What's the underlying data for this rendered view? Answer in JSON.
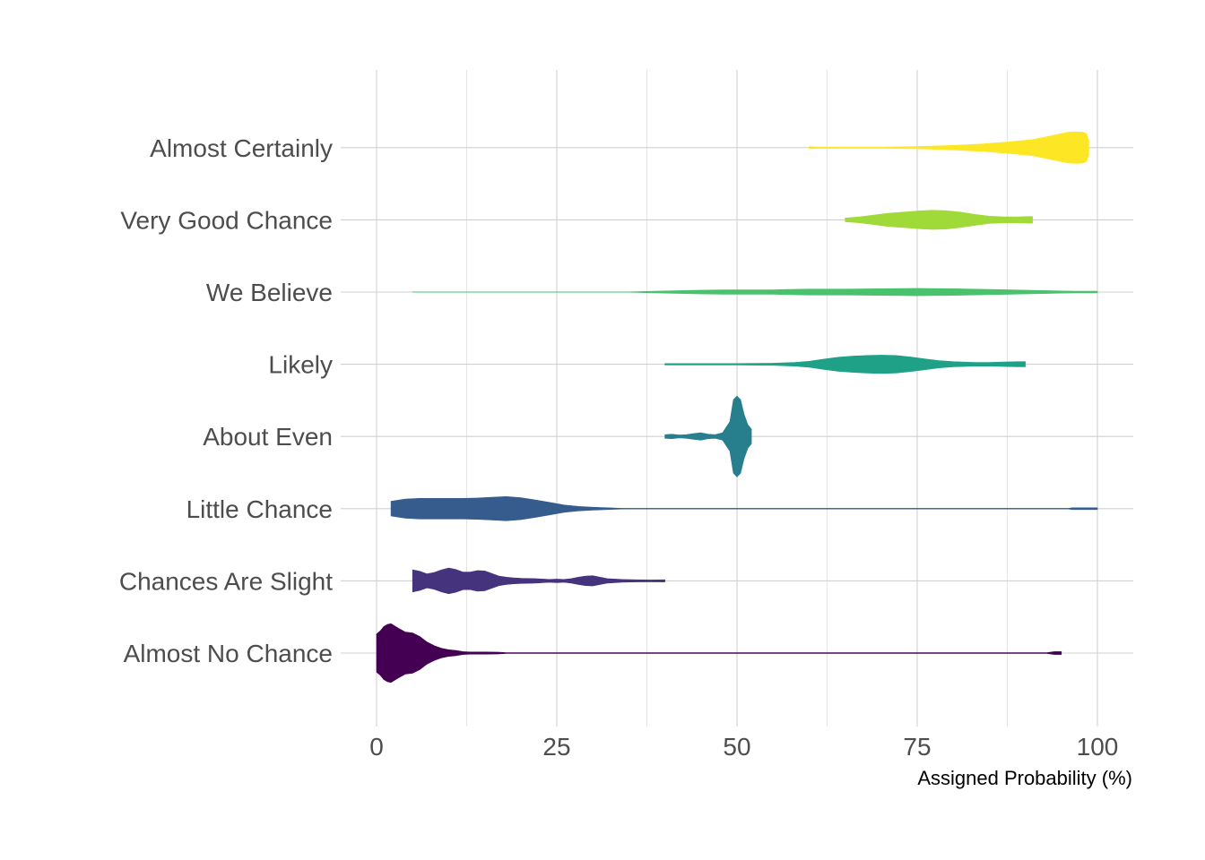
{
  "chart_data": {
    "type": "violin",
    "orientation": "horizontal",
    "title": "",
    "xlabel": "Assigned Probability (%)",
    "ylabel": "",
    "xlim": [
      0,
      100
    ],
    "x_ticks": [
      0,
      25,
      50,
      75,
      100
    ],
    "grid": true,
    "legend": "none",
    "categories": [
      "Almost No Chance",
      "Chances Are Slight",
      "Little Chance",
      "About Even",
      "Likely",
      "We Believe",
      "Very Good Chance",
      "Almost Certainly"
    ],
    "series": [
      {
        "name": "Almost No Chance",
        "color": "#440154",
        "density": [
          [
            0,
            0.52
          ],
          [
            0.5,
            0.6
          ],
          [
            1,
            0.72
          ],
          [
            1.5,
            0.78
          ],
          [
            2,
            0.8
          ],
          [
            3,
            0.68
          ],
          [
            4,
            0.57
          ],
          [
            5,
            0.55
          ],
          [
            6,
            0.45
          ],
          [
            7,
            0.3
          ],
          [
            8,
            0.2
          ],
          [
            9,
            0.13
          ],
          [
            10,
            0.09
          ],
          [
            11,
            0.07
          ],
          [
            12,
            0.04
          ],
          [
            13,
            0.03
          ],
          [
            15,
            0.03
          ],
          [
            17,
            0.025
          ],
          [
            18,
            0.01
          ],
          [
            30,
            0.01
          ],
          [
            60,
            0.01
          ],
          [
            90,
            0.01
          ],
          [
            93,
            0.01
          ],
          [
            94,
            0.04
          ],
          [
            95,
            0.04
          ]
        ]
      },
      {
        "name": "Chances Are Slight",
        "color": "#46337e",
        "density": [
          [
            5,
            0.3
          ],
          [
            6,
            0.26
          ],
          [
            7,
            0.19
          ],
          [
            8,
            0.23
          ],
          [
            9,
            0.3
          ],
          [
            10,
            0.35
          ],
          [
            11,
            0.31
          ],
          [
            12,
            0.24
          ],
          [
            13,
            0.24
          ],
          [
            14,
            0.28
          ],
          [
            15,
            0.27
          ],
          [
            16,
            0.2
          ],
          [
            17,
            0.13
          ],
          [
            18,
            0.1
          ],
          [
            19,
            0.08
          ],
          [
            20,
            0.07
          ],
          [
            22,
            0.06
          ],
          [
            24,
            0.04
          ],
          [
            25,
            0.05
          ],
          [
            26,
            0.04
          ],
          [
            27,
            0.06
          ],
          [
            28,
            0.1
          ],
          [
            29,
            0.13
          ],
          [
            30,
            0.14
          ],
          [
            31,
            0.1
          ],
          [
            32,
            0.06
          ],
          [
            34,
            0.04
          ],
          [
            36,
            0.03
          ],
          [
            38,
            0.025
          ],
          [
            40,
            0.03
          ]
        ]
      },
      {
        "name": "Little Chance",
        "color": "#365c8d",
        "density": [
          [
            2,
            0.2
          ],
          [
            4,
            0.26
          ],
          [
            6,
            0.28
          ],
          [
            8,
            0.28
          ],
          [
            10,
            0.28
          ],
          [
            12,
            0.28
          ],
          [
            14,
            0.29
          ],
          [
            16,
            0.31
          ],
          [
            18,
            0.33
          ],
          [
            20,
            0.3
          ],
          [
            22,
            0.24
          ],
          [
            24,
            0.17
          ],
          [
            26,
            0.1
          ],
          [
            28,
            0.06
          ],
          [
            30,
            0.04
          ],
          [
            32,
            0.025
          ],
          [
            34,
            0.01
          ],
          [
            40,
            0.01
          ],
          [
            60,
            0.01
          ],
          [
            80,
            0.01
          ],
          [
            96,
            0.01
          ],
          [
            96.5,
            0.025
          ],
          [
            100,
            0.025
          ]
        ]
      },
      {
        "name": "About Even",
        "color": "#277f8e",
        "density": [
          [
            40,
            0.05
          ],
          [
            41,
            0.06
          ],
          [
            42,
            0.04
          ],
          [
            43,
            0.05
          ],
          [
            44,
            0.08
          ],
          [
            45,
            0.1
          ],
          [
            46,
            0.06
          ],
          [
            47,
            0.05
          ],
          [
            48,
            0.1
          ],
          [
            49,
            0.4
          ],
          [
            49.5,
            1.0
          ],
          [
            50,
            1.1
          ],
          [
            50.5,
            1.0
          ],
          [
            51,
            0.6
          ],
          [
            51.5,
            0.32
          ],
          [
            52,
            0.2
          ]
        ]
      },
      {
        "name": "Likely",
        "color": "#1fa187",
        "density": [
          [
            40,
            0.02
          ],
          [
            50,
            0.02
          ],
          [
            55,
            0.03
          ],
          [
            58,
            0.05
          ],
          [
            60,
            0.08
          ],
          [
            62,
            0.14
          ],
          [
            64,
            0.19
          ],
          [
            66,
            0.22
          ],
          [
            68,
            0.24
          ],
          [
            70,
            0.25
          ],
          [
            72,
            0.24
          ],
          [
            74,
            0.2
          ],
          [
            76,
            0.15
          ],
          [
            78,
            0.1
          ],
          [
            80,
            0.07
          ],
          [
            83,
            0.05
          ],
          [
            85,
            0.05
          ],
          [
            87,
            0.06
          ],
          [
            89,
            0.07
          ],
          [
            90,
            0.07
          ]
        ]
      },
      {
        "name": "We Believe",
        "color": "#4ac16d",
        "density": [
          [
            5,
            0.005
          ],
          [
            35,
            0.005
          ],
          [
            38,
            0.02
          ],
          [
            40,
            0.03
          ],
          [
            45,
            0.05
          ],
          [
            48,
            0.06
          ],
          [
            55,
            0.06
          ],
          [
            57,
            0.07
          ],
          [
            60,
            0.08
          ],
          [
            65,
            0.08
          ],
          [
            70,
            0.09
          ],
          [
            75,
            0.1
          ],
          [
            80,
            0.09
          ],
          [
            85,
            0.07
          ],
          [
            88,
            0.06
          ],
          [
            90,
            0.05
          ],
          [
            93,
            0.04
          ],
          [
            95,
            0.03
          ],
          [
            97,
            0.025
          ],
          [
            100,
            0.025
          ]
        ]
      },
      {
        "name": "Very Good Chance",
        "color": "#a0da39",
        "density": [
          [
            65,
            0.05
          ],
          [
            67,
            0.08
          ],
          [
            69,
            0.13
          ],
          [
            71,
            0.18
          ],
          [
            73,
            0.21
          ],
          [
            75,
            0.24
          ],
          [
            77,
            0.26
          ],
          [
            79,
            0.25
          ],
          [
            81,
            0.21
          ],
          [
            83,
            0.15
          ],
          [
            85,
            0.1
          ],
          [
            87,
            0.08
          ],
          [
            89,
            0.08
          ],
          [
            90.5,
            0.09
          ],
          [
            91,
            0.09
          ]
        ]
      },
      {
        "name": "Almost Certainly",
        "color": "#fde725",
        "density": [
          [
            60,
            0.03
          ],
          [
            61,
            0.02
          ],
          [
            70,
            0.015
          ],
          [
            75,
            0.03
          ],
          [
            80,
            0.06
          ],
          [
            84,
            0.1
          ],
          [
            88,
            0.16
          ],
          [
            91,
            0.22
          ],
          [
            93,
            0.3
          ],
          [
            95,
            0.38
          ],
          [
            96,
            0.42
          ],
          [
            97,
            0.43
          ],
          [
            98,
            0.42
          ],
          [
            98.5,
            0.38
          ],
          [
            98.8,
            0.2
          ]
        ]
      }
    ]
  }
}
